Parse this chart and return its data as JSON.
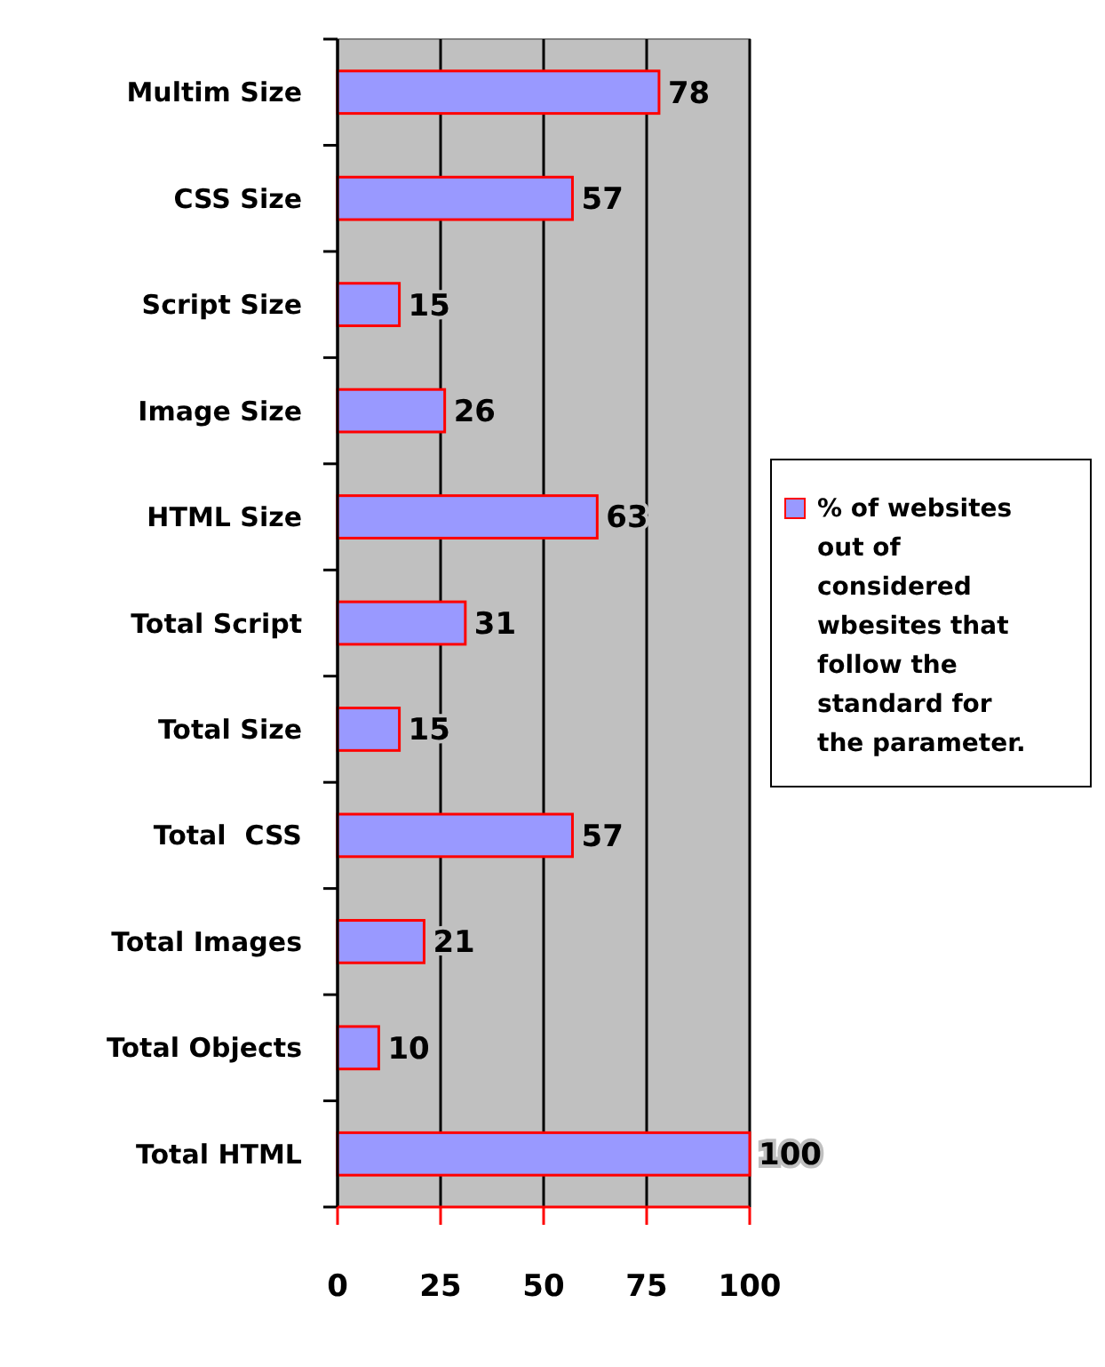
{
  "chart_data": {
    "type": "bar",
    "orientation": "horizontal",
    "categories": [
      "Multim Size",
      "CSS Size",
      "Script Size",
      "Image Size",
      "HTML Size",
      "Total Script",
      "Total Size",
      "Total  CSS",
      "Total Images",
      "Total Objects",
      "Total HTML"
    ],
    "series": [
      {
        "name": "% of websites out of considered wbesites that follow the standard for the parameter.",
        "color": "#9999ff",
        "values": [
          78,
          57,
          15,
          26,
          63,
          31,
          15,
          57,
          21,
          10,
          100
        ]
      }
    ],
    "xlim": [
      0,
      100
    ],
    "xticks": [
      0,
      25,
      50,
      75,
      100
    ],
    "grid": "x",
    "legend": "right",
    "data_labels": true
  }
}
